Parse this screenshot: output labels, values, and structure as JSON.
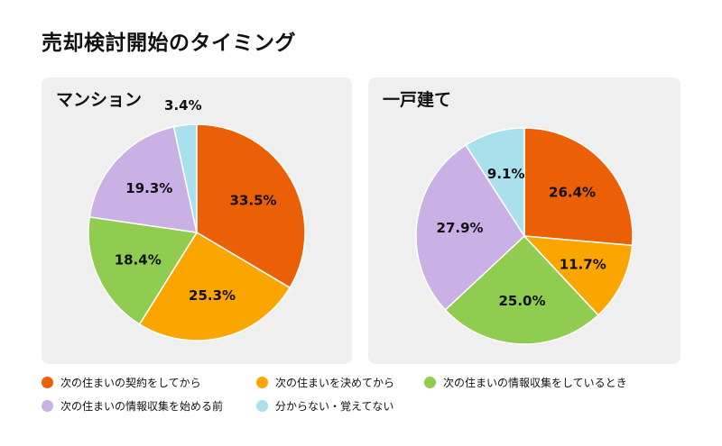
{
  "title": "売却検討開始のタイミング",
  "legend": [
    {
      "label": "次の住まいの契約をしてから",
      "color": "#eb5f07"
    },
    {
      "label": "次の住まいを決めてから",
      "color": "#fba600"
    },
    {
      "label": "次の住まいの情報収集をしているとき",
      "color": "#8fcc4f"
    },
    {
      "label": "次の住まいの情報収集を始める前",
      "color": "#c9b1e6"
    },
    {
      "label": "分からない・覚えてない",
      "color": "#a9e0ec"
    }
  ],
  "chart_data": [
    {
      "type": "pie",
      "title": "マンション",
      "categories": [
        "次の住まいの契約をしてから",
        "次の住まいを決めてから",
        "次の住まいの情報収集をしているとき",
        "次の住まいの情報収集を始める前",
        "分からない・覚えてない"
      ],
      "values": [
        33.5,
        25.3,
        18.4,
        19.3,
        3.4
      ],
      "labels": [
        "33.5%",
        "25.3%",
        "18.4%",
        "19.3%",
        "3.4%"
      ],
      "colors": [
        "#eb5f07",
        "#fba600",
        "#8fcc4f",
        "#c9b1e6",
        "#a9e0ec"
      ]
    },
    {
      "type": "pie",
      "title": "一戸建て",
      "categories": [
        "次の住まいの契約をしてから",
        "次の住まいを決めてから",
        "次の住まいの情報収集をしているとき",
        "次の住まいの情報収集を始める前",
        "分からない・覚えてない"
      ],
      "values": [
        26.4,
        11.7,
        25.0,
        27.9,
        9.1
      ],
      "labels": [
        "26.4%",
        "11.7%",
        "25.0%",
        "27.9%",
        "9.1%"
      ],
      "colors": [
        "#eb5f07",
        "#fba600",
        "#8fcc4f",
        "#c9b1e6",
        "#a9e0ec"
      ]
    }
  ]
}
